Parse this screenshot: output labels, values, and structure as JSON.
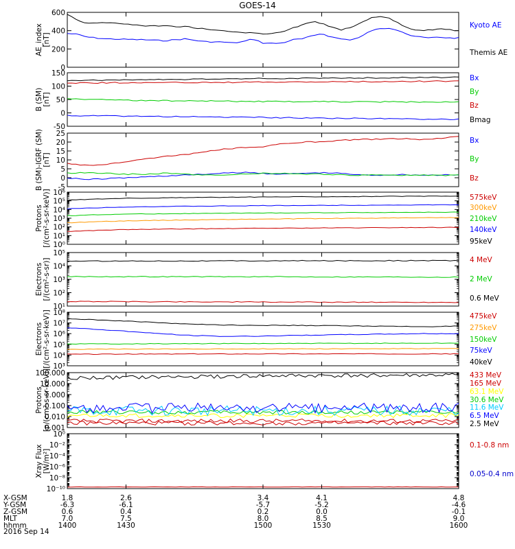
{
  "title": "GOES-14",
  "chart_data": [
    {
      "type": "line",
      "ylabel": "AE_index [nT]",
      "yscale": "linear",
      "ylim": [
        0,
        600
      ],
      "yticks": [
        "600",
        "400",
        "200",
        "0"
      ],
      "series": [
        {
          "name": "Kyoto AE",
          "color": "#0000ff",
          "x": [
            1400,
            1405,
            1410,
            1420,
            1430,
            1440,
            1450,
            1455,
            1460,
            1470,
            1480,
            1485,
            1490,
            1495,
            1500,
            1505,
            1510,
            1515,
            1520,
            1525,
            1530,
            1535,
            1540,
            1545,
            1550,
            1555,
            1560,
            1565,
            1570,
            1575,
            1580,
            1585,
            1590,
            1595,
            1600
          ],
          "y": [
            370,
            360,
            330,
            310,
            305,
            300,
            290,
            300,
            310,
            280,
            275,
            265,
            280,
            310,
            265,
            260,
            265,
            300,
            310,
            340,
            370,
            330,
            310,
            300,
            330,
            400,
            420,
            430,
            400,
            350,
            330,
            320,
            330,
            320,
            320
          ]
        },
        {
          "name": "Themis AE",
          "color": "#000000",
          "x": [
            1400,
            1405,
            1410,
            1420,
            1430,
            1440,
            1450,
            1460,
            1470,
            1480,
            1490,
            1500,
            1505,
            1510,
            1515,
            1520,
            1525,
            1530,
            1535,
            1540,
            1545,
            1550,
            1555,
            1560,
            1565,
            1570,
            1575,
            1580,
            1585,
            1590,
            1595,
            1600
          ],
          "y": [
            580,
            520,
            480,
            490,
            470,
            455,
            450,
            445,
            420,
            395,
            380,
            365,
            370,
            390,
            430,
            460,
            500,
            480,
            440,
            410,
            440,
            480,
            540,
            550,
            530,
            470,
            420,
            400,
            410,
            420,
            410,
            395
          ]
        }
      ]
    },
    {
      "type": "line",
      "ylabel": "B (SM) [nT]",
      "yscale": "linear",
      "ylim": [
        -60,
        150
      ],
      "yticks": [
        "150",
        "100",
        "50",
        "0",
        "-50"
      ],
      "series": [
        {
          "name": "Bx",
          "color": "#0000ff",
          "x": [
            1400,
            1600
          ],
          "y": [
            -18,
            -33
          ]
        },
        {
          "name": "By",
          "color": "#00cc00",
          "x": [
            1400,
            1430,
            1500,
            1600
          ],
          "y": [
            48,
            42,
            37,
            35
          ]
        },
        {
          "name": "Bz",
          "color": "#cc0000",
          "x": [
            1400,
            1500,
            1600
          ],
          "y": [
            110,
            113,
            117
          ]
        },
        {
          "name": "Bmag",
          "color": "#000000",
          "x": [
            1400,
            1500,
            1600
          ],
          "y": [
            120,
            127,
            132
          ]
        }
      ]
    },
    {
      "type": "line",
      "ylabel": "B (SM)-IGRF (SM) [nT]",
      "yscale": "linear",
      "ylim": [
        -5,
        25
      ],
      "yticks": [
        "25",
        "20",
        "15",
        "10",
        "5",
        "0",
        "-5"
      ],
      "series": [
        {
          "name": "Bx",
          "color": "#0000ff",
          "x": [
            1400,
            1410,
            1420,
            1430,
            1440,
            1450,
            1460,
            1470,
            1480,
            1490,
            1500,
            1510,
            1520,
            1530,
            1540,
            1550,
            1560,
            1570,
            1580,
            1590,
            1600
          ],
          "y": [
            0,
            -1,
            -0.5,
            0,
            0.5,
            1,
            1.5,
            2,
            2.5,
            3,
            2.5,
            2,
            2.5,
            2.8,
            2.5,
            1.5,
            1.5,
            1.8,
            1.5,
            1.5,
            1.5
          ]
        },
        {
          "name": "By",
          "color": "#00cc00",
          "x": [
            1400,
            1410,
            1420,
            1430,
            1440,
            1450,
            1460,
            1470,
            1480,
            1490,
            1500,
            1510,
            1520,
            1530,
            1540,
            1550,
            1560,
            1570,
            1580,
            1590,
            1600
          ],
          "y": [
            2.5,
            3,
            2.5,
            2,
            2,
            2.5,
            2,
            1.5,
            1.5,
            2,
            2.5,
            2.5,
            2,
            2,
            1.5,
            1.5,
            1.8,
            1.5,
            1.5,
            1.2,
            1.5
          ]
        },
        {
          "name": "Bz",
          "color": "#cc0000",
          "x": [
            1400,
            1405,
            1410,
            1420,
            1430,
            1440,
            1450,
            1460,
            1470,
            1480,
            1490,
            1500,
            1510,
            1520,
            1530,
            1540,
            1550,
            1560,
            1570,
            1580,
            1590,
            1600
          ],
          "y": [
            8,
            7.5,
            7,
            7.5,
            9,
            10.5,
            12,
            13,
            14.5,
            16,
            17,
            17.5,
            19,
            20,
            20,
            21,
            21.5,
            21.5,
            22,
            21.5,
            22,
            23
          ]
        }
      ]
    },
    {
      "type": "line",
      "ylabel": "Protons [/(cm²-s-sr-keV)]",
      "yscale": "log",
      "ylim": [
        1,
        1000000
      ],
      "yticks": [
        "10⁶",
        "10⁵",
        "10⁴",
        "10³",
        "10²",
        "10¹",
        "10⁰"
      ],
      "series": [
        {
          "name": "575keV",
          "color": "#cc0000",
          "x": [
            1400,
            1430,
            1500,
            1600
          ],
          "y": [
            30,
            50,
            70,
            90
          ]
        },
        {
          "name": "300keV",
          "color": "#ff9900",
          "x": [
            1400,
            1430,
            1500,
            1600
          ],
          "y": [
            300,
            500,
            800,
            1200
          ]
        },
        {
          "name": "210keV",
          "color": "#00cc00",
          "x": [
            1400,
            1430,
            1500,
            1600
          ],
          "y": [
            2000,
            3000,
            4000,
            5000
          ]
        },
        {
          "name": "140keV",
          "color": "#0000ff",
          "x": [
            1400,
            1430,
            1500,
            1600
          ],
          "y": [
            12000,
            20000,
            28000,
            35000
          ]
        },
        {
          "name": "95keV",
          "color": "#000000",
          "x": [
            1400,
            1430,
            1500,
            1600
          ],
          "y": [
            120000,
            200000,
            280000,
            350000
          ]
        }
      ]
    },
    {
      "type": "line",
      "ylabel": "Electrons [/(cm²-s-sr)]",
      "yscale": "log",
      "ylim": [
        10,
        100000
      ],
      "yticks": [
        "10⁵",
        "10⁴",
        "10³",
        "10²",
        "10¹"
      ],
      "series": [
        {
          "name": "4 MeV",
          "color": "#cc0000",
          "x": [
            1400,
            1500,
            1600
          ],
          "y": [
            22,
            20,
            19
          ]
        },
        {
          "name": "2 MeV",
          "color": "#00cc00",
          "x": [
            1400,
            1500,
            1600
          ],
          "y": [
            1600,
            1550,
            1450
          ]
        },
        {
          "name": "0.6 MeV",
          "color": "#000000",
          "x": [
            1400,
            1500,
            1600
          ],
          "y": [
            23000,
            24000,
            25000
          ]
        }
      ]
    },
    {
      "type": "line",
      "ylabel": "Electrons [/(cm²-s-sr-keV)]",
      "yscale": "log",
      "ylim": [
        1000,
        100000000
      ],
      "yticks": [
        "10⁸",
        "10⁷",
        "10⁶",
        "10⁵",
        "10⁴",
        "10³"
      ],
      "series": [
        {
          "name": "475keV",
          "color": "#cc0000",
          "x": [
            1400,
            1500,
            1600
          ],
          "y": [
            12000,
            13000,
            13000
          ]
        },
        {
          "name": "275keV",
          "color": "#ff9900",
          "x": [
            1400,
            1500,
            1600
          ],
          "y": [
            35000,
            38000,
            40000
          ]
        },
        {
          "name": "150keV",
          "color": "#00cc00",
          "x": [
            1400,
            1500,
            1600
          ],
          "y": [
            110000,
            120000,
            130000
          ]
        },
        {
          "name": "75keV",
          "color": "#0000ff",
          "x": [
            1400,
            1420,
            1440,
            1460,
            1480,
            1500,
            1520,
            1540,
            1560,
            1580,
            1600
          ],
          "y": [
            3500000,
            2200000,
            1200000,
            700000,
            550000,
            600000,
            700000,
            800000,
            900000,
            1000000,
            1000000
          ]
        },
        {
          "name": "40keV",
          "color": "#000000",
          "x": [
            1400,
            1420,
            1440,
            1460,
            1480,
            1500,
            1520,
            1540,
            1560,
            1580,
            1600
          ],
          "y": [
            25000000,
            18000000,
            12000000,
            8000000,
            6500000,
            6000000,
            5800000,
            5500000,
            5000000,
            4500000,
            5000000
          ]
        }
      ]
    },
    {
      "type": "line",
      "ylabel": "Protons [p/(cm²-s-sr-keV)]",
      "yscale": "log",
      "ylim": [
        0.001,
        100
      ],
      "yticks": [
        "100.000",
        "10.000",
        "1.000",
        "0.100",
        "0.010",
        "0.001"
      ],
      "series": [
        {
          "name": "433 MeV",
          "color": "#cc0000",
          "x": [
            1400,
            1500,
            1600
          ],
          "y": [
            0.0025,
            0.0025,
            0.0025
          ]
        },
        {
          "name": "165 MeV",
          "color": "#cc0000",
          "x": [
            1400,
            1500,
            1600
          ],
          "y": [
            0.004,
            0.004,
            0.004
          ]
        },
        {
          "name": "63.1 MeV",
          "color": "#ffff00",
          "x": [
            1400,
            1500,
            1600
          ],
          "y": [
            0.012,
            0.012,
            0.012
          ]
        },
        {
          "name": "30.6 MeV",
          "color": "#00cc00",
          "x": [
            1400,
            1500,
            1600
          ],
          "y": [
            0.025,
            0.025,
            0.025
          ]
        },
        {
          "name": "11.6 MeV",
          "color": "#00ccff",
          "x": [
            1400,
            1500,
            1600
          ],
          "y": [
            0.035,
            0.035,
            0.035
          ]
        },
        {
          "name": "6.5 MeV",
          "color": "#0000ff",
          "x": [
            1400,
            1500,
            1600
          ],
          "y": [
            0.06,
            0.06,
            0.06
          ]
        },
        {
          "name": "2.5 MeV",
          "color": "#000000",
          "x": [
            1400,
            1500,
            1600
          ],
          "y": [
            30,
            50,
            60
          ]
        }
      ]
    },
    {
      "type": "line",
      "ylabel": "Xray Flux [W/m²]",
      "yscale": "log",
      "ylim": [
        1e-10,
        1
      ],
      "yticks": [
        "10⁰",
        "10⁻²",
        "10⁻⁴",
        "10⁻⁶",
        "10⁻⁸",
        "10⁻¹⁰"
      ],
      "series": [
        {
          "name": "0.1-0.8 nm",
          "color": "#cc0000",
          "x": [
            1400,
            1600
          ],
          "y": [
            2e-10,
            2e-10
          ]
        },
        {
          "name": "0.05-0.4 nm",
          "color": "#0000cc",
          "x": [],
          "y": []
        }
      ]
    }
  ],
  "panel_label_lines": [
    [
      "AE_index",
      "[nT]"
    ],
    [
      "B (SM)",
      "[nT]"
    ],
    [
      "B (SM)-IGRF (SM)",
      "[nT]"
    ],
    [
      "Protons",
      "[/(cm²-s-sr-keV)]"
    ],
    [
      "Electrons",
      "[/(cm²-s-sr)]"
    ],
    [
      "Electrons",
      "[/(cm²-s-sr-keV)]"
    ],
    [
      "Protons",
      "[p/(cm²-s-sr-keV)]"
    ],
    [
      "Xray Flux",
      "[W/m²]"
    ]
  ],
  "xaxis": {
    "row_labels": [
      "X-GSM",
      "Y-GSM",
      "Z-GSM",
      "MLT",
      "hhmm"
    ],
    "date": "2016 Sep 14",
    "ticks": [
      {
        "t": 1400,
        "vals": [
          "1.8",
          "-6.3",
          "0.6",
          "7.0",
          "1400"
        ]
      },
      {
        "t": 1430,
        "vals": [
          "2.6",
          "-6.1",
          "0.4",
          "7.5",
          "1430"
        ]
      },
      {
        "t": 1500,
        "vals": [
          "3.4",
          "-5.7",
          "0.2",
          "8.0",
          "1500"
        ]
      },
      {
        "t": 1530,
        "vals": [
          "4.1",
          "-5.2",
          "0.0",
          "8.5",
          "1530"
        ]
      },
      {
        "t": 1600,
        "vals": [
          "4.8",
          "-4.6",
          "-0.1",
          "9.0",
          "1600"
        ]
      }
    ]
  }
}
